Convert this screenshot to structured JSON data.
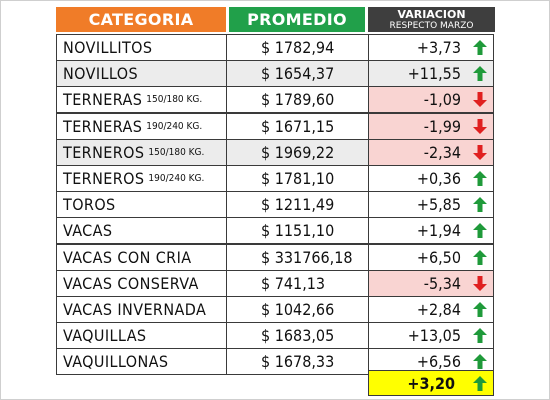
{
  "header": {
    "categoria": "CATEGORIA",
    "promedio": "PROMEDIO",
    "variacion": "VARIACION",
    "variacion_sub": "RESPECTO MARZO"
  },
  "colors": {
    "header_categoria": "#f07c28",
    "header_promedio": "#21a04a",
    "header_variacion": "#3e3e3e",
    "row_alt": "#ececec",
    "negative_bg": "#f9d4d2",
    "up_arrow": "#1f9a3a",
    "down_arrow": "#e02020",
    "total_bg": "#ffff00"
  },
  "rows": [
    {
      "categoria": "NOVILLITOS",
      "kg": "",
      "promedio": "$ 1782,94",
      "variacion": "+3,73",
      "trend": "up",
      "alt": false
    },
    {
      "categoria": "NOVILLOS",
      "kg": "",
      "promedio": "$ 1654,37",
      "variacion": "+11,55",
      "trend": "up",
      "alt": true
    },
    {
      "categoria": "TERNERAS",
      "kg": "150/180 KG.",
      "promedio": "$ 1789,60",
      "variacion": "-1,09",
      "trend": "down",
      "alt": false
    },
    {
      "categoria": "TERNERAS",
      "kg": "190/240 KG.",
      "promedio": "$ 1671,15",
      "variacion": "-1,99",
      "trend": "down",
      "alt": false
    },
    {
      "categoria": "TERNEROS",
      "kg": "150/180 KG.",
      "promedio": "$ 1969,22",
      "variacion": "-2,34",
      "trend": "down",
      "alt": true
    },
    {
      "categoria": "TERNEROS",
      "kg": "190/240 KG.",
      "promedio": "$ 1781,10",
      "variacion": "+0,36",
      "trend": "up",
      "alt": false
    },
    {
      "categoria": "TOROS",
      "kg": "",
      "promedio": "$ 1211,49",
      "variacion": "+5,85",
      "trend": "up",
      "alt": false
    },
    {
      "categoria": "VACAS",
      "kg": "",
      "promedio": "$ 1151,10",
      "variacion": "+1,94",
      "trend": "up",
      "alt": false
    },
    {
      "categoria": "VACAS CON CRIA",
      "kg": "",
      "promedio": "$ 331766,18",
      "variacion": "+6,50",
      "trend": "up",
      "alt": false
    },
    {
      "categoria": "VACAS CONSERVA",
      "kg": "",
      "promedio": "$ 741,13",
      "variacion": "-5,34",
      "trend": "down",
      "alt": false
    },
    {
      "categoria": "VACAS INVERNADA",
      "kg": "",
      "promedio": "$ 1042,66",
      "variacion": "+2,84",
      "trend": "up",
      "alt": false
    },
    {
      "categoria": "VAQUILLAS",
      "kg": "",
      "promedio": "$ 1683,05",
      "variacion": "+13,05",
      "trend": "up",
      "alt": false
    },
    {
      "categoria": "VAQUILLONAS",
      "kg": "",
      "promedio": "$ 1678,33",
      "variacion": "+6,56",
      "trend": "up",
      "alt": false
    }
  ],
  "total": {
    "variacion": "+3,20",
    "trend": "up"
  },
  "icons": {
    "up": "arrow-up-icon",
    "down": "arrow-down-icon"
  }
}
